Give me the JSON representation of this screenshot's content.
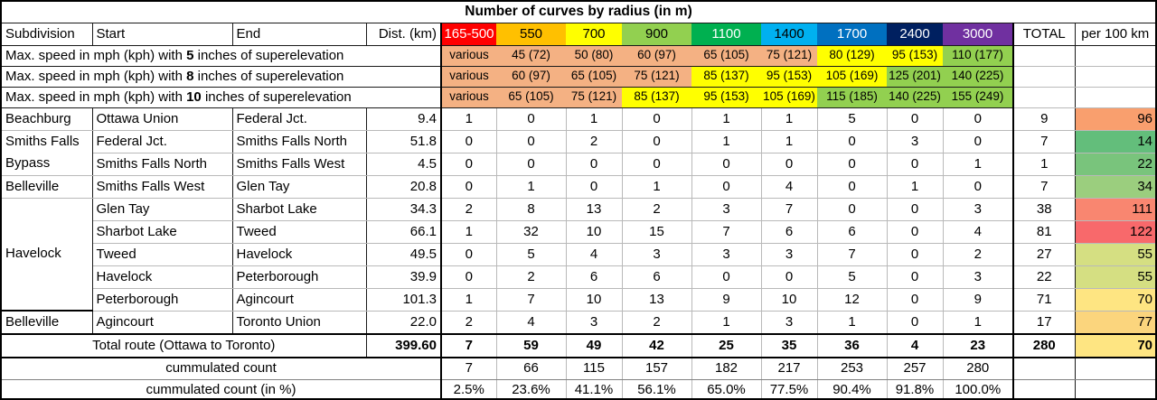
{
  "chart_data": {
    "type": "table",
    "title": "Number of curves by radius (in m)",
    "column_headers": {
      "left": [
        "Subdivision",
        "Start",
        "End",
        "Dist. (km)"
      ],
      "radius_bins_m": [
        {
          "label": "165-500",
          "bg": "#FF0000",
          "fg": "#FFFFFF"
        },
        {
          "label": "550",
          "bg": "#FFC000",
          "fg": "#000000"
        },
        {
          "label": "700",
          "bg": "#FFFF00",
          "fg": "#000000"
        },
        {
          "label": "900",
          "bg": "#92D050",
          "fg": "#000000"
        },
        {
          "label": "1100",
          "bg": "#00B050",
          "fg": "#FFFFFF"
        },
        {
          "label": "1400",
          "bg": "#00B0F0",
          "fg": "#000000"
        },
        {
          "label": "1700",
          "bg": "#0070C0",
          "fg": "#FFFFFF"
        },
        {
          "label": "2400",
          "bg": "#002060",
          "fg": "#FFFFFF"
        },
        {
          "label": "3000",
          "bg": "#7030A0",
          "fg": "#FFFFFF"
        }
      ],
      "total": "TOTAL",
      "per100": "per 100 km"
    },
    "superelevation_rows": [
      {
        "label_prefix": "Max. speed in mph (kph) with ",
        "inches": "5",
        "label_suffix": " inches of superelevation",
        "values": [
          {
            "text": "various",
            "bg": "#F4B183"
          },
          {
            "text": "45 (72)",
            "bg": "#F4B183"
          },
          {
            "text": "50 (80)",
            "bg": "#F4B183"
          },
          {
            "text": "60 (97)",
            "bg": "#F4B183"
          },
          {
            "text": "65 (105)",
            "bg": "#F4B183"
          },
          {
            "text": "75 (121)",
            "bg": "#F4B183"
          },
          {
            "text": "80 (129)",
            "bg": "#FFFF00"
          },
          {
            "text": "95 (153)",
            "bg": "#FFFF00"
          },
          {
            "text": "110 (177)",
            "bg": "#92D050"
          }
        ]
      },
      {
        "label_prefix": "Max. speed in mph (kph) with ",
        "inches": "8",
        "label_suffix": " inches of superelevation",
        "values": [
          {
            "text": "various",
            "bg": "#F4B183"
          },
          {
            "text": "60 (97)",
            "bg": "#F4B183"
          },
          {
            "text": "65 (105)",
            "bg": "#F4B183"
          },
          {
            "text": "75 (121)",
            "bg": "#F4B183"
          },
          {
            "text": "85 (137)",
            "bg": "#FFFF00"
          },
          {
            "text": "95 (153)",
            "bg": "#FFFF00"
          },
          {
            "text": "105 (169)",
            "bg": "#FFFF00"
          },
          {
            "text": "125 (201)",
            "bg": "#92D050"
          },
          {
            "text": "140 (225)",
            "bg": "#92D050"
          }
        ]
      },
      {
        "label_prefix": "Max. speed in mph (kph) with ",
        "inches": "10",
        "label_suffix": " inches of superelevation",
        "values": [
          {
            "text": "various",
            "bg": "#F4B183"
          },
          {
            "text": "65 (105)",
            "bg": "#F4B183"
          },
          {
            "text": "75 (121)",
            "bg": "#F4B183"
          },
          {
            "text": "85 (137)",
            "bg": "#FFFF00"
          },
          {
            "text": "95 (153)",
            "bg": "#FFFF00"
          },
          {
            "text": "105 (169)",
            "bg": "#FFFF00"
          },
          {
            "text": "115 (185)",
            "bg": "#92D050"
          },
          {
            "text": "140 (225)",
            "bg": "#92D050"
          },
          {
            "text": "155 (249)",
            "bg": "#92D050"
          }
        ]
      }
    ],
    "rows": [
      {
        "subdivision": {
          "text": "Beachburg",
          "rowspan": 1
        },
        "start": "Ottawa Union",
        "end": "Federal Jct.",
        "dist": "9.4",
        "counts": [
          "1",
          "0",
          "1",
          "0",
          "1",
          "1",
          "5",
          "0",
          "0"
        ],
        "total": "9",
        "per100": {
          "text": "96",
          "bg": "#F99F6E"
        }
      },
      {
        "subdivision": {
          "text": "Smiths Falls Bypass",
          "rowspan": 2
        },
        "start": "Federal Jct.",
        "end": "Smiths Falls North",
        "dist": "51.8",
        "counts": [
          "0",
          "0",
          "2",
          "0",
          "1",
          "1",
          "0",
          "3",
          "0"
        ],
        "total": "7",
        "per100": {
          "text": "14",
          "bg": "#63BE7B"
        }
      },
      {
        "subdivision": null,
        "start": "Smiths Falls North",
        "end": "Smiths Falls West",
        "dist": "4.5",
        "counts": [
          "0",
          "0",
          "0",
          "0",
          "0",
          "0",
          "0",
          "0",
          "1"
        ],
        "total": "1",
        "per100": {
          "text": "22",
          "bg": "#79C47C"
        }
      },
      {
        "subdivision": {
          "text": "Belleville",
          "rowspan": 1
        },
        "start": "Smiths Falls West",
        "end": "Glen Tay",
        "dist": "20.8",
        "counts": [
          "0",
          "1",
          "0",
          "1",
          "0",
          "4",
          "0",
          "1",
          "0"
        ],
        "total": "7",
        "per100": {
          "text": "34",
          "bg": "#9BCE7E"
        }
      },
      {
        "subdivision": {
          "text": "Havelock",
          "rowspan": 5
        },
        "start": "Glen Tay",
        "end": "Sharbot Lake",
        "dist": "34.3",
        "counts": [
          "2",
          "8",
          "13",
          "2",
          "3",
          "7",
          "0",
          "0",
          "3"
        ],
        "total": "38",
        "per100": {
          "text": "111",
          "bg": "#F98670"
        }
      },
      {
        "subdivision": null,
        "start": "Sharbot Lake",
        "end": "Tweed",
        "dist": "66.1",
        "counts": [
          "1",
          "32",
          "10",
          "15",
          "7",
          "6",
          "6",
          "0",
          "4"
        ],
        "total": "81",
        "per100": {
          "text": "122",
          "bg": "#F8696B"
        }
      },
      {
        "subdivision": null,
        "start": "Tweed",
        "end": "Havelock",
        "dist": "49.5",
        "counts": [
          "0",
          "5",
          "4",
          "3",
          "3",
          "3",
          "7",
          "0",
          "2"
        ],
        "total": "27",
        "per100": {
          "text": "55",
          "bg": "#D5DF82"
        }
      },
      {
        "subdivision": null,
        "start": "Havelock",
        "end": "Peterborough",
        "dist": "39.9",
        "counts": [
          "0",
          "2",
          "6",
          "6",
          "0",
          "0",
          "5",
          "0",
          "3"
        ],
        "total": "22",
        "per100": {
          "text": "55",
          "bg": "#D5DF82"
        }
      },
      {
        "subdivision": null,
        "start": "Peterborough",
        "end": "Agincourt",
        "dist": "101.3",
        "counts": [
          "1",
          "7",
          "10",
          "13",
          "9",
          "10",
          "12",
          "0",
          "9"
        ],
        "total": "71",
        "per100": {
          "text": "70",
          "bg": "#FEE582"
        }
      },
      {
        "subdivision": {
          "text": "Belleville",
          "rowspan": 1
        },
        "start": "Agincourt",
        "end": "Toronto Union",
        "dist": "22.0",
        "counts": [
          "2",
          "4",
          "3",
          "2",
          "1",
          "3",
          "1",
          "0",
          "1"
        ],
        "total": "17",
        "per100": {
          "text": "77",
          "bg": "#FBD57D"
        }
      }
    ],
    "total_row": {
      "label": "Total route (Ottawa to Toronto)",
      "dist": "399.60",
      "counts": [
        "7",
        "59",
        "49",
        "42",
        "25",
        "35",
        "36",
        "4",
        "23"
      ],
      "total": "280",
      "per100": {
        "text": "70",
        "bg": "#FEE582"
      }
    },
    "cumulated_count_row": {
      "label": "cummulated count",
      "values": [
        "7",
        "66",
        "115",
        "157",
        "182",
        "217",
        "253",
        "257",
        "280"
      ]
    },
    "cumulated_percent_row": {
      "label": "cummulated count (in %)",
      "values": [
        "2.5%",
        "23.6%",
        "41.1%",
        "56.1%",
        "65.0%",
        "77.5%",
        "90.4%",
        "91.8%",
        "100.0%"
      ]
    }
  }
}
